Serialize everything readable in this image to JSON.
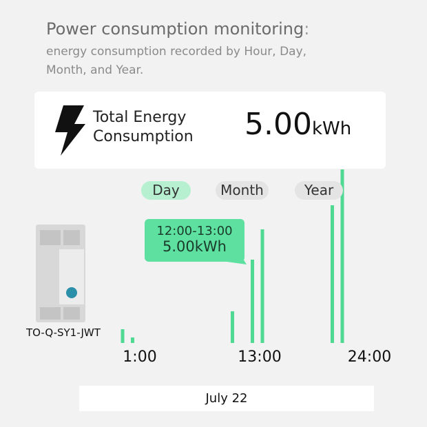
{
  "header": {
    "title": "Power consumption monitoring",
    "title_suffix": ":",
    "subtitle": "energy consumption recorded by Hour, Day, Month, and Year."
  },
  "summary": {
    "label": "Total Energy Consumption",
    "value": "5.00",
    "unit": "kWh"
  },
  "tabs": [
    "Day",
    "Month",
    "Year"
  ],
  "chart_data": {
    "type": "bar",
    "color": "#4fd993",
    "categories": [
      "1:00",
      null,
      null,
      null,
      null,
      null,
      null,
      null,
      null,
      null,
      null,
      null,
      "13:00",
      null,
      null,
      null,
      null,
      null,
      null,
      null,
      null,
      null,
      null,
      "24:00"
    ],
    "values": [
      20,
      8,
      0,
      0,
      0,
      0,
      0,
      0,
      0,
      0,
      0,
      46,
      0,
      121,
      165,
      0,
      0,
      0,
      0,
      0,
      0,
      200,
      252,
      0
    ],
    "tooltip": {
      "range": "12:00-13:00",
      "value": "5.00kWh"
    }
  },
  "device": {
    "model": "TO-Q-SY1-JWT"
  },
  "date_nav": {
    "date": "July 22"
  }
}
